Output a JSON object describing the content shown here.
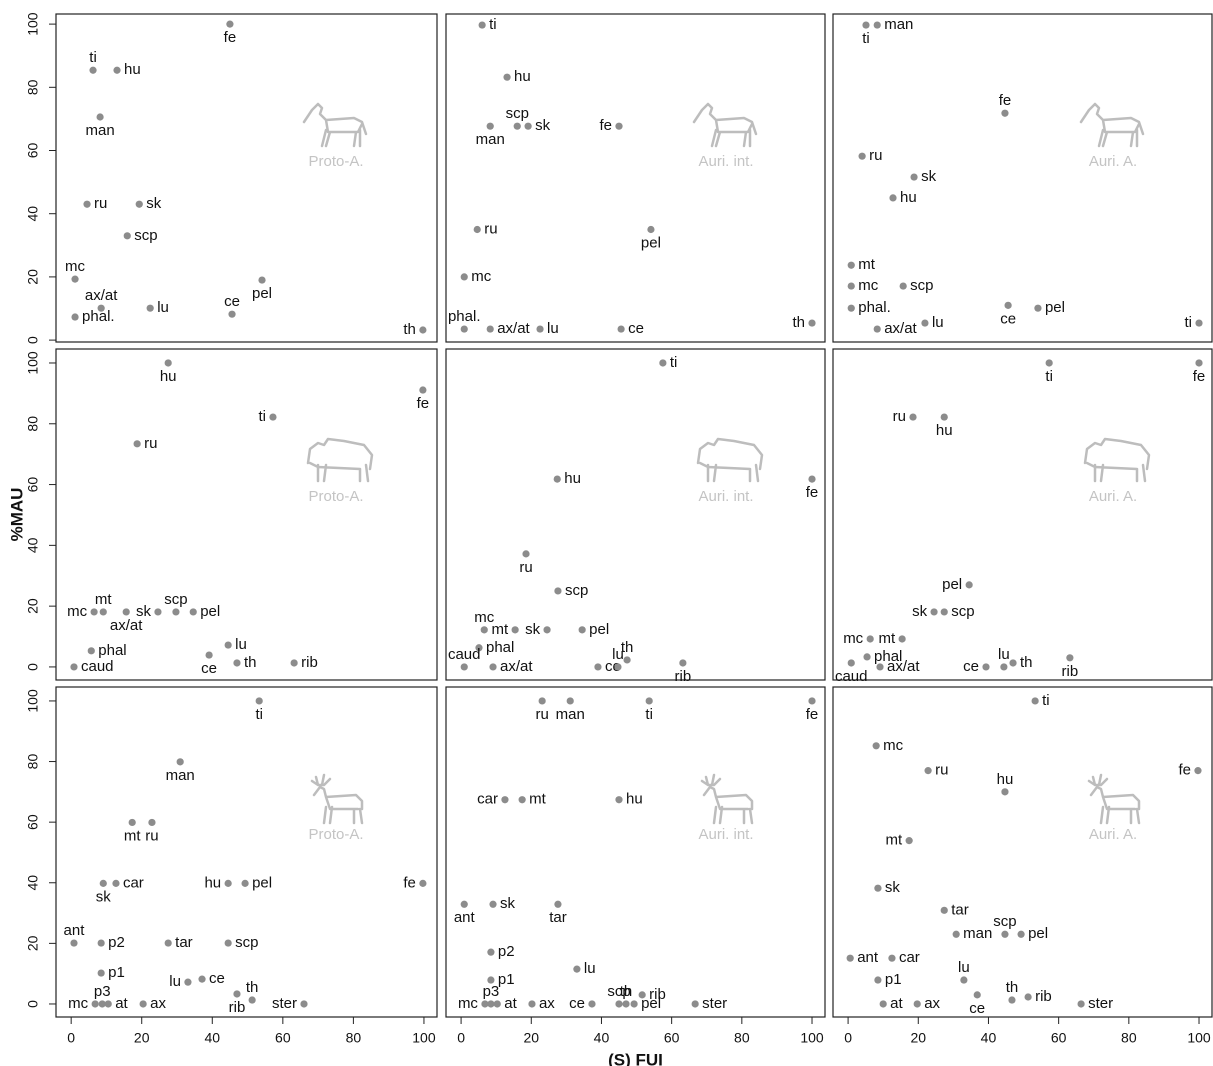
{
  "chart_data": [
    {
      "type": "scatter",
      "annotation": "Proto-A.",
      "color": "#8c8c8c",
      "xlim": [
        -4.3,
        103.7
      ],
      "ylim": [
        -0.6,
        103.2
      ],
      "yticks": [
        0,
        20,
        40,
        60,
        80,
        100
      ],
      "labels": [
        "fe",
        "ti",
        "hu",
        "man",
        "ru",
        "sk",
        "scp",
        "mc",
        "ax/at",
        "phal.",
        "lu",
        "ce",
        "pel",
        "th"
      ],
      "x": [
        45,
        6.2,
        13,
        8.2,
        4.5,
        19.3,
        15.9,
        1.1,
        8.5,
        1.1,
        22.4,
        45.6,
        54.1,
        99.7
      ],
      "y": [
        100,
        85.4,
        85.4,
        70.6,
        43,
        43,
        33,
        19.3,
        10.1,
        7.3,
        10.1,
        8.2,
        19,
        3.2
      ]
    },
    {
      "type": "scatter",
      "annotation": "Auri. int.",
      "color": "#8c8c8c",
      "xlim": [
        -4.3,
        103.7
      ],
      "ylim": [
        -0.6,
        103.2
      ],
      "labels": [
        "ti",
        "hu",
        "scp",
        "sk",
        "man",
        "fe",
        "ru",
        "pel",
        "mc",
        "phal.",
        "ax/at",
        "lu",
        "ce",
        "th"
      ],
      "x": [
        6,
        13.1,
        16,
        19.1,
        8.3,
        45,
        4.6,
        54.1,
        0.9,
        0.9,
        8.3,
        22.5,
        45.6,
        100
      ],
      "y": [
        99.7,
        83.2,
        67.7,
        67.7,
        67.7,
        67.7,
        35,
        35,
        20,
        3.5,
        3.5,
        3.5,
        3.5,
        5.4
      ]
    },
    {
      "type": "scatter",
      "annotation": "Auri. A.",
      "color": "#8c8c8c",
      "xlim": [
        -4.3,
        103.7
      ],
      "ylim": [
        -0.6,
        103.2
      ],
      "labels": [
        "ti",
        "man",
        "fe",
        "ru",
        "sk",
        "hu",
        "mt",
        "mc",
        "scp",
        "phal.",
        "ax/at",
        "lu",
        "ce",
        "pel",
        "ti"
      ],
      "x": [
        5.1,
        8.3,
        44.7,
        4,
        18.8,
        12.8,
        0.9,
        0.9,
        15.7,
        0.9,
        8.3,
        21.9,
        45.6,
        54.1,
        100
      ],
      "y": [
        99.7,
        99.7,
        71.8,
        58.2,
        51.6,
        45,
        23.7,
        17.1,
        17.1,
        10.1,
        3.5,
        5.4,
        11,
        10.1,
        5.4
      ]
    },
    {
      "type": "scatter",
      "annotation": "Proto-A.",
      "color": "#8c8c8c",
      "xlim": [
        -4.3,
        103.7
      ],
      "ylim": [
        -4.3,
        104.6
      ],
      "yticks": [
        0,
        20,
        40,
        60,
        80,
        100
      ],
      "ylabel": "%MAU",
      "labels": [
        "hu",
        "fe",
        "ti",
        "ru",
        "mc",
        "mt",
        "ax/at",
        "sk",
        "scp",
        "pel",
        "phal",
        "caud",
        "lu",
        "ce",
        "th",
        "rib"
      ],
      "x": [
        27.5,
        99.7,
        57.2,
        18.7,
        6.5,
        9.1,
        15.6,
        24.6,
        29.7,
        34.6,
        5.7,
        0.8,
        44.5,
        39.1,
        47,
        63.2
      ],
      "y": [
        100,
        91.1,
        82.2,
        73.4,
        18.1,
        18.1,
        18.1,
        18.1,
        18.1,
        18.1,
        5.3,
        0,
        7.2,
        3.9,
        1.3,
        1.3
      ]
    },
    {
      "type": "scatter",
      "annotation": "Auri. int.",
      "color": "#8c8c8c",
      "xlim": [
        -4.3,
        103.7
      ],
      "ylim": [
        -4.3,
        104.6
      ],
      "labels": [
        "ti",
        "fe",
        "hu",
        "ru",
        "scp",
        "mc",
        "mt",
        "sk",
        "pel",
        "phal",
        "caud",
        "ax/at",
        "ce",
        "th",
        "lu",
        "rib"
      ],
      "x": [
        57.5,
        100,
        27.4,
        18.5,
        27.6,
        6.6,
        15.4,
        24.5,
        34.5,
        5.1,
        0.9,
        9.1,
        39,
        47.3,
        44.7,
        63.2
      ],
      "y": [
        100,
        61.8,
        61.8,
        37.2,
        25,
        12.2,
        12.2,
        12.2,
        12.2,
        6.3,
        0,
        0,
        0,
        2.3,
        0,
        1.3
      ]
    },
    {
      "type": "scatter",
      "annotation": "Auri. A.",
      "color": "#8c8c8c",
      "xlim": [
        -4.3,
        103.7
      ],
      "ylim": [
        -4.3,
        104.6
      ],
      "labels": [
        "ti",
        "fe",
        "ru",
        "hu",
        "pel",
        "sk",
        "scp",
        "mc",
        "mt",
        "phal",
        "caud",
        "ax/at",
        "ce",
        "lu",
        "th",
        "rib"
      ],
      "x": [
        57.3,
        100,
        18.5,
        27.4,
        34.5,
        24.5,
        27.4,
        6.3,
        15.4,
        5.4,
        0.9,
        9.1,
        39.3,
        44.4,
        47,
        63.2
      ],
      "y": [
        100,
        100,
        82.2,
        82.2,
        27,
        18.1,
        18.1,
        9.2,
        9.2,
        3.3,
        1.3,
        0,
        0,
        0,
        1.3,
        3
      ]
    },
    {
      "type": "scatter",
      "annotation": "Proto-A.",
      "color": "#8c8c8c",
      "xlim": [
        -4.3,
        103.7
      ],
      "ylim": [
        -4.3,
        104.6
      ],
      "yticks": [
        0,
        20,
        40,
        60,
        80,
        100
      ],
      "xticks": [
        0,
        20,
        40,
        60,
        80,
        100
      ],
      "labels": [
        "ti",
        "man",
        "mt",
        "ru",
        "sk",
        "car",
        "hu",
        "pel",
        "fe",
        "ant",
        "p2",
        "tar",
        "scp",
        "p1",
        "lu",
        "ce",
        "rib",
        "th",
        "ster",
        "mc",
        "p3",
        "at",
        "ax"
      ],
      "x": [
        53.3,
        30.9,
        17.3,
        22.9,
        9.1,
        12.7,
        44.5,
        49.3,
        99.7,
        0.8,
        8.5,
        27.5,
        44.5,
        8.5,
        33.1,
        37.1,
        47,
        51.3,
        66,
        6.8,
        8.8,
        10.5,
        20.4
      ],
      "y": [
        100,
        79.9,
        59.9,
        59.9,
        39.8,
        39.8,
        39.8,
        39.8,
        39.8,
        20.1,
        20.1,
        20.1,
        20.1,
        10.2,
        7.2,
        8.2,
        3.3,
        1.3,
        0,
        0,
        0,
        0,
        0
      ]
    },
    {
      "type": "scatter",
      "annotation": "Auri. int.",
      "color": "#8c8c8c",
      "xlim": [
        -4.3,
        103.7
      ],
      "ylim": [
        -4.3,
        104.6
      ],
      "xticks": [
        0,
        20,
        40,
        60,
        80,
        100
      ],
      "xlabel": "(S) FUI",
      "labels": [
        "ru",
        "man",
        "ti",
        "fe",
        "car",
        "mt",
        "hu",
        "ant",
        "sk",
        "tar",
        "p2",
        "lu",
        "p1",
        "mc",
        "p3",
        "at",
        "ax",
        "ce",
        "scp",
        "th",
        "pel",
        "rib",
        "ster"
      ],
      "x": [
        23.1,
        31.1,
        53.6,
        100,
        12.5,
        17.4,
        45,
        0.9,
        9.1,
        27.6,
        8.5,
        33,
        8.5,
        6.8,
        8.5,
        10.3,
        20.2,
        37.3,
        45,
        47,
        49.3,
        51.6,
        66.7
      ],
      "y": [
        100,
        100,
        100,
        100,
        67.4,
        67.4,
        67.4,
        32.9,
        32.9,
        32.9,
        17.1,
        11.5,
        7.9,
        0,
        0,
        0,
        0,
        0,
        0,
        0,
        0,
        3,
        0
      ]
    },
    {
      "type": "scatter",
      "annotation": "Auri. A.",
      "color": "#8c8c8c",
      "xlim": [
        -4.3,
        103.7
      ],
      "ylim": [
        -4.3,
        104.6
      ],
      "xticks": [
        0,
        20,
        40,
        60,
        80,
        100
      ],
      "labels": [
        "ti",
        "mc",
        "ru",
        "fe",
        "hu",
        "mt",
        "sk",
        "tar",
        "man",
        "scp",
        "pel",
        "ant",
        "car",
        "p1",
        "lu",
        "at",
        "ax",
        "ce",
        "th",
        "rib",
        "ster"
      ],
      "x": [
        53.3,
        8,
        22.8,
        99.7,
        44.7,
        17.4,
        8.5,
        27.4,
        30.8,
        44.7,
        49.3,
        0.6,
        12.5,
        8.5,
        33,
        10,
        19.7,
        36.8,
        46.7,
        51.3,
        66.4
      ],
      "y": [
        100,
        85.2,
        77,
        77,
        70,
        53.9,
        38.2,
        30.9,
        23,
        23,
        23,
        15.1,
        15.1,
        7.9,
        7.9,
        0,
        0,
        3,
        1.3,
        2.3,
        0
      ]
    }
  ]
}
